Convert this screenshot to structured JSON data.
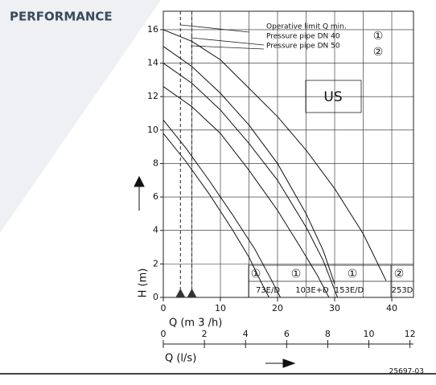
{
  "chart_data": {
    "type": "line",
    "title": "PERFORMANCE",
    "xlabel": "Q (m 3 /h)",
    "x2label": "Q (l/s)",
    "ylabel": "H (m)",
    "xlim": [
      0,
      43.8
    ],
    "ylim": [
      0,
      17.1
    ],
    "x2lim": [
      0,
      12.17
    ],
    "xticks": [
      0,
      10,
      20,
      30,
      40
    ],
    "x2ticks": [
      0,
      2,
      4,
      6,
      8,
      10,
      12
    ],
    "yticks": [
      0,
      2,
      4,
      6,
      8,
      10,
      12,
      14,
      16
    ],
    "grid": true,
    "color": "#111",
    "qmin_lines": [
      3,
      5
    ],
    "legend": [
      "Operative limit Q min.",
      "Pressure pipe DN 40",
      "Pressure pipe DN 50"
    ],
    "legend_marks": [
      "①",
      "②"
    ],
    "region_label": "US",
    "model_marks": [
      "①",
      "①",
      "①",
      "②"
    ],
    "models": [
      "73E/D",
      "103E+D",
      "153E/D",
      "253D"
    ],
    "code": "25697-03",
    "series": [
      {
        "x": [
          0,
          5,
          10,
          15,
          20,
          25,
          30,
          35,
          39
        ],
        "values": [
          16,
          15.3,
          14.2,
          12.5,
          10.8,
          8.8,
          6.5,
          3.8,
          1
        ]
      },
      {
        "x": [
          0,
          5,
          10,
          15,
          20,
          25,
          28,
          30
        ],
        "values": [
          15,
          13.8,
          12.2,
          10.3,
          8,
          5,
          2.8,
          0.8
        ]
      },
      {
        "x": [
          0,
          5,
          10,
          15,
          20,
          25,
          28,
          30.5
        ],
        "values": [
          14,
          12.8,
          11.2,
          9.2,
          7,
          4.2,
          2.2,
          0
        ]
      },
      {
        "x": [
          0,
          5,
          10,
          15,
          20,
          24,
          27,
          29
        ],
        "values": [
          12.6,
          11.4,
          9.8,
          7.6,
          5.2,
          3,
          1.3,
          0
        ]
      },
      {
        "x": [
          0,
          4,
          8,
          12,
          16,
          19,
          20.5
        ],
        "values": [
          10.6,
          8.9,
          7,
          5,
          2.9,
          1,
          0
        ]
      },
      {
        "x": [
          0,
          4,
          8,
          12,
          15,
          17,
          18.5
        ],
        "values": [
          9.8,
          8.1,
          6.2,
          4.1,
          2.4,
          1,
          0
        ]
      }
    ]
  }
}
